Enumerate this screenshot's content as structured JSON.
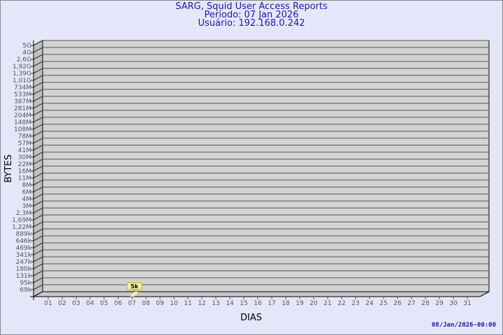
{
  "header": {
    "title": "SARG, Squid User Access Reports",
    "period": "Período: 07 Jan 2026",
    "user": "Usuário: 192.168.0.242"
  },
  "footer": {
    "timestamp": "08/Jan/2026-00:00"
  },
  "chart_data": {
    "type": "bar",
    "title": "SARG, Squid User Access Reports",
    "xlabel": "DIAS",
    "ylabel": "BYTES",
    "y_scale": "log",
    "y_ticks": [
      "5G",
      "4G",
      "2,6G",
      "1,92G",
      "1,39G",
      "1,01G",
      "734M",
      "533M",
      "387M",
      "281M",
      "204M",
      "148M",
      "108M",
      "78M",
      "57M",
      "41M",
      "30M",
      "22M",
      "16M",
      "11M",
      "8M",
      "6M",
      "4M",
      "3M",
      "2,3M",
      "1,69M",
      "1,22M",
      "889k",
      "646k",
      "469k",
      "341k",
      "247k",
      "180k",
      "131k",
      "95k",
      "69k"
    ],
    "categories": [
      "01",
      "02",
      "03",
      "04",
      "05",
      "06",
      "07",
      "08",
      "09",
      "10",
      "11",
      "12",
      "13",
      "14",
      "15",
      "16",
      "17",
      "18",
      "19",
      "20",
      "21",
      "22",
      "23",
      "24",
      "25",
      "26",
      "27",
      "28",
      "29",
      "30",
      "31"
    ],
    "bars": [
      {
        "category": "07",
        "value": 5000,
        "label": "5k"
      }
    ],
    "grid": true,
    "colors": {
      "background": "#e6e6fa",
      "plot": "#d3d3d3",
      "bar": "#ffeb9c",
      "label_box": "#f5f0a0",
      "title": "#1a1aa6"
    }
  }
}
